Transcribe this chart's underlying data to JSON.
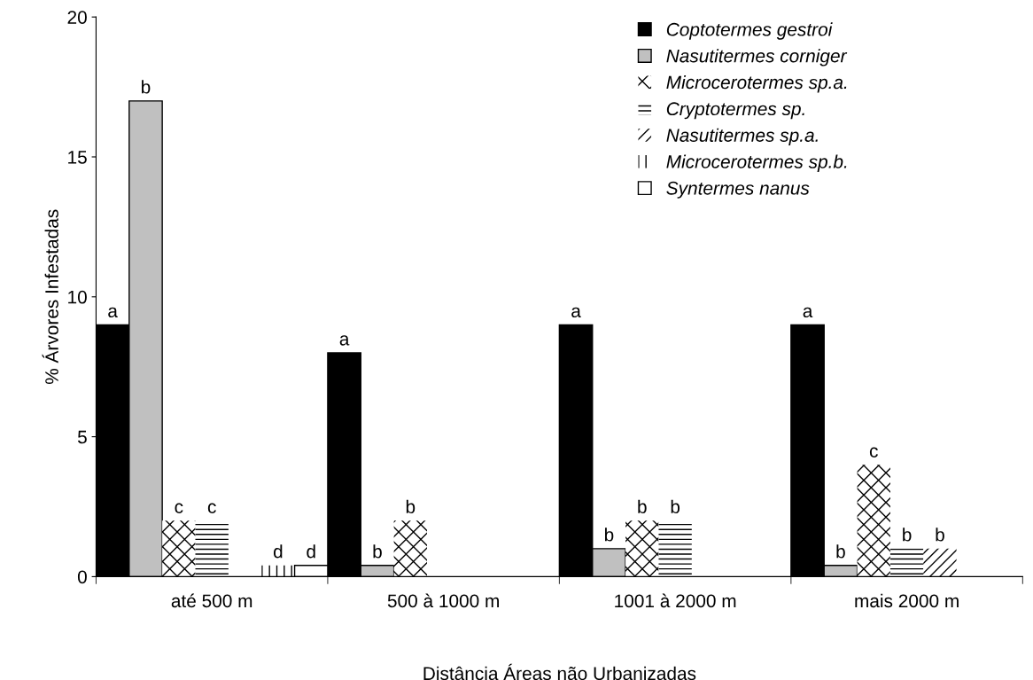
{
  "chart_data": {
    "type": "bar",
    "xlabel": "Distância Áreas não Urbanizadas",
    "ylabel": "% Árvores Infestadas",
    "categories": [
      "até 500 m",
      "500 à 1000 m",
      "1001 à 2000 m",
      "mais 2000 m"
    ],
    "series": [
      {
        "name": "Coptotermes gestroi",
        "color": "#000000",
        "values": [
          9,
          8,
          9,
          9
        ],
        "value_labels": [
          "a",
          "a",
          "a",
          "a"
        ]
      },
      {
        "name": "Nasutitermes corniger",
        "color": "#c0c0c0",
        "values": [
          17,
          0.4,
          1,
          0.4
        ],
        "value_labels": [
          "b",
          "b",
          "b",
          "b"
        ]
      },
      {
        "name": "Microcerotermes sp.a.",
        "color": "#ffffff",
        "values": [
          2,
          2,
          2,
          4
        ],
        "value_labels": [
          "c",
          "b",
          "b",
          "c"
        ]
      },
      {
        "name": "Cryptotermes sp.",
        "color": "#ffffff",
        "values": [
          2,
          null,
          2,
          1
        ],
        "value_labels": [
          "c",
          null,
          "b",
          "b"
        ]
      },
      {
        "name": "Nasutitermes sp.a.",
        "color": "#ffffff",
        "values": [
          null,
          null,
          null,
          1
        ],
        "value_labels": [
          null,
          null,
          null,
          "b"
        ]
      },
      {
        "name": "Microcerotermes sp.b.",
        "color": "#ffffff",
        "values": [
          0.4,
          null,
          null,
          null
        ],
        "value_labels": [
          "d",
          null,
          null,
          null
        ]
      },
      {
        "name": "Syntermes nanus",
        "color": "#ffffff",
        "values": [
          0.4,
          null,
          null,
          null
        ],
        "value_labels": [
          "d",
          null,
          null,
          null
        ]
      }
    ],
    "ylim": [
      0,
      20
    ],
    "yticks": [
      0,
      5,
      10,
      15,
      20
    ],
    "grid": false,
    "legend": "top right"
  }
}
